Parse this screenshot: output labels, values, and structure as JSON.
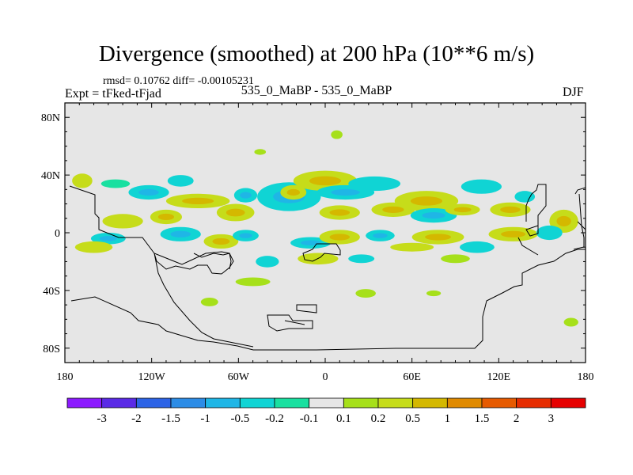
{
  "title": "Divergence (smoothed) at 200 hPa (10**6 m/s)",
  "stats_line": "rmsd= 0.10762  diff= -0.00105231",
  "left_label": "Expt = tFked-tFjad",
  "center_label": "535_0_MaBP - 535_0_MaBP",
  "right_label": "DJF",
  "colors": {
    "background": "#e6e6e6",
    "coastline": "#000000",
    "colorbar": [
      "#8c1aff",
      "#5a2ae6",
      "#2c63e6",
      "#2c8ce6",
      "#1fb6e6",
      "#10d4d4",
      "#19e0a0",
      "#e6e6e6",
      "#a6e01a",
      "#c6dc1a",
      "#d4b800",
      "#e08a00",
      "#e65a00",
      "#e62c00",
      "#e60000"
    ]
  },
  "chart_data": {
    "type": "heatmap",
    "title": "Divergence (smoothed) at 200 hPa (10**6 m/s)",
    "subtitle": "rmsd= 0.10762  diff= -0.00105231",
    "xlim": [
      -180,
      180
    ],
    "ylim": [
      -90,
      90
    ],
    "x_ticks": [
      -180,
      -120,
      -60,
      0,
      60,
      120,
      180
    ],
    "x_tick_labels": [
      "180",
      "120W",
      "60W",
      "0",
      "60E",
      "120E",
      "180"
    ],
    "y_ticks": [
      80,
      40,
      0,
      -40,
      -80
    ],
    "y_tick_labels": [
      "80N",
      "40N",
      "0",
      "40S",
      "80S"
    ],
    "colorbar_labels": [
      "-3",
      "-2",
      "-1.5",
      "-1",
      "-0.5",
      "-0.2",
      "-0.1",
      "0.1",
      "0.2",
      "0.5",
      "1",
      "1.5",
      "2",
      "3"
    ],
    "blobs": [
      {
        "lon": -168,
        "lat": 36,
        "rx": 7,
        "ry": 5,
        "v": 0.25
      },
      {
        "lon": -145,
        "lat": 34,
        "rx": 10,
        "ry": 3,
        "v": -0.15
      },
      {
        "lon": -122,
        "lat": 28,
        "rx": 14,
        "ry": 5,
        "v": -0.3
      },
      {
        "lon": -100,
        "lat": 36,
        "rx": 9,
        "ry": 4,
        "v": -0.2
      },
      {
        "lon": -88,
        "lat": 22,
        "rx": 22,
        "ry": 5,
        "v": 0.3
      },
      {
        "lon": -140,
        "lat": 8,
        "rx": 14,
        "ry": 5,
        "v": 0.25
      },
      {
        "lon": -110,
        "lat": 11,
        "rx": 11,
        "ry": 5,
        "v": 0.35
      },
      {
        "lon": -62,
        "lat": 14,
        "rx": 13,
        "ry": 6,
        "v": 0.3
      },
      {
        "lon": -25,
        "lat": 25,
        "rx": 22,
        "ry": 10,
        "v": -0.35
      },
      {
        "lon": -22,
        "lat": 28,
        "rx": 9,
        "ry": 5,
        "v": 0.4
      },
      {
        "lon": -55,
        "lat": 26,
        "rx": 8,
        "ry": 5,
        "v": -0.3
      },
      {
        "lon": 0,
        "lat": 36,
        "rx": 22,
        "ry": 7,
        "v": 0.3
      },
      {
        "lon": 14,
        "lat": 28,
        "rx": 20,
        "ry": 5,
        "v": -0.3
      },
      {
        "lon": 10,
        "lat": 14,
        "rx": 14,
        "ry": 5,
        "v": 0.3
      },
      {
        "lon": 34,
        "lat": 34,
        "rx": 18,
        "ry": 5,
        "v": -0.25
      },
      {
        "lon": 47,
        "lat": 16,
        "rx": 15,
        "ry": 5,
        "v": 0.35
      },
      {
        "lon": 70,
        "lat": 22,
        "rx": 22,
        "ry": 7,
        "v": 0.3
      },
      {
        "lon": 75,
        "lat": 12,
        "rx": 16,
        "ry": 5,
        "v": -0.3
      },
      {
        "lon": 108,
        "lat": 32,
        "rx": 14,
        "ry": 5,
        "v": -0.25
      },
      {
        "lon": 95,
        "lat": 16,
        "rx": 12,
        "ry": 4,
        "v": 0.3
      },
      {
        "lon": 128,
        "lat": 16,
        "rx": 14,
        "ry": 5,
        "v": 0.35
      },
      {
        "lon": 138,
        "lat": 25,
        "rx": 7,
        "ry": 4,
        "v": -0.2
      },
      {
        "lon": 165,
        "lat": 8,
        "rx": 10,
        "ry": 8,
        "v": 0.4
      },
      {
        "lon": -150,
        "lat": -4,
        "rx": 12,
        "ry": 4,
        "v": -0.3
      },
      {
        "lon": -100,
        "lat": -1,
        "rx": 14,
        "ry": 5,
        "v": -0.35
      },
      {
        "lon": -72,
        "lat": -6,
        "rx": 12,
        "ry": 5,
        "v": 0.3
      },
      {
        "lon": -55,
        "lat": -2,
        "rx": 9,
        "ry": 4,
        "v": -0.3
      },
      {
        "lon": -10,
        "lat": -7,
        "rx": 14,
        "ry": 4,
        "v": -0.3
      },
      {
        "lon": 10,
        "lat": -3,
        "rx": 14,
        "ry": 5,
        "v": 0.35
      },
      {
        "lon": 38,
        "lat": -2,
        "rx": 10,
        "ry": 4,
        "v": -0.3
      },
      {
        "lon": 78,
        "lat": -3,
        "rx": 18,
        "ry": 5,
        "v": 0.3
      },
      {
        "lon": 130,
        "lat": -1,
        "rx": 17,
        "ry": 5,
        "v": 0.3
      },
      {
        "lon": 155,
        "lat": 0,
        "rx": 9,
        "ry": 5,
        "v": -0.25
      },
      {
        "lon": -160,
        "lat": -10,
        "rx": 13,
        "ry": 4,
        "v": 0.25
      },
      {
        "lon": 60,
        "lat": -10,
        "rx": 15,
        "ry": 3,
        "v": 0.25
      },
      {
        "lon": 105,
        "lat": -10,
        "rx": 12,
        "ry": 4,
        "v": -0.2
      },
      {
        "lon": -5,
        "lat": -18,
        "rx": 14,
        "ry": 4,
        "v": 0.25
      },
      {
        "lon": -40,
        "lat": -20,
        "rx": 8,
        "ry": 4,
        "v": -0.2
      },
      {
        "lon": 25,
        "lat": -18,
        "rx": 9,
        "ry": 3,
        "v": -0.2
      },
      {
        "lon": 90,
        "lat": -18,
        "rx": 10,
        "ry": 3,
        "v": 0.2
      },
      {
        "lon": -50,
        "lat": -34,
        "rx": 12,
        "ry": 3,
        "v": 0.2
      },
      {
        "lon": 28,
        "lat": -42,
        "rx": 7,
        "ry": 3,
        "v": 0.2
      },
      {
        "lon": -80,
        "lat": -48,
        "rx": 6,
        "ry": 3,
        "v": 0.2
      },
      {
        "lon": 75,
        "lat": -42,
        "rx": 5,
        "ry": 2,
        "v": 0.2
      },
      {
        "lon": 170,
        "lat": -62,
        "rx": 5,
        "ry": 3,
        "v": 0.2
      },
      {
        "lon": 8,
        "lat": 68,
        "rx": 4,
        "ry": 3,
        "v": 0.2
      },
      {
        "lon": -45,
        "lat": 56,
        "rx": 4,
        "ry": 2,
        "v": 0.2
      }
    ]
  }
}
